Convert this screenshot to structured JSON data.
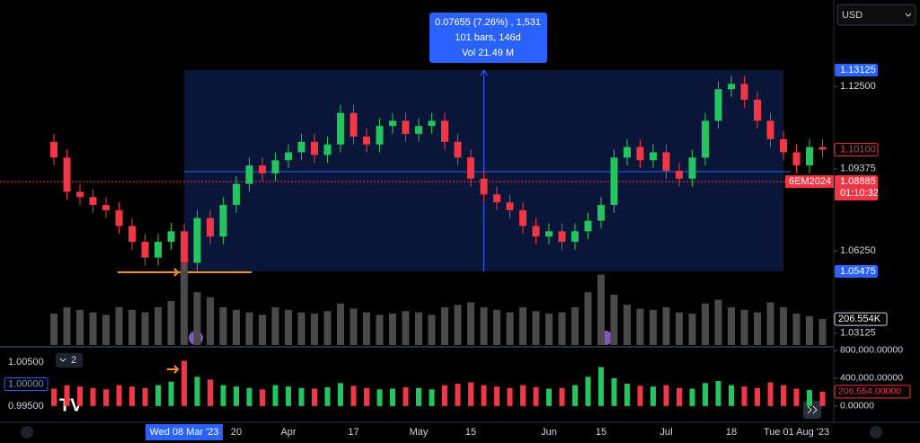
{
  "toolbar": {
    "currency": "USD",
    "indicator_count": "2"
  },
  "chart_data": {
    "type": "candlestick",
    "open": [
      1.104,
      1.098,
      1.085,
      1.083,
      1.08,
      1.078,
      1.072,
      1.066,
      1.06,
      1.066,
      1.07,
      1.058,
      1.075,
      1.068,
      1.08,
      1.088,
      1.095,
      1.092,
      1.097,
      1.1,
      1.104,
      1.099,
      1.103,
      1.115,
      1.106,
      1.103,
      1.11,
      1.112,
      1.107,
      1.11,
      1.112,
      1.104,
      1.098,
      1.09,
      1.084,
      1.081,
      1.078,
      1.072,
      1.068,
      1.07,
      1.066,
      1.07,
      1.074,
      1.08,
      1.098,
      1.102,
      1.097,
      1.1,
      1.093,
      1.09,
      1.098,
      1.112,
      1.124,
      1.126,
      1.12,
      1.112,
      1.105,
      1.1,
      1.095,
      1.102
    ],
    "high": [
      1.107,
      1.101,
      1.088,
      1.086,
      1.083,
      1.081,
      1.075,
      1.069,
      1.069,
      1.073,
      1.073,
      1.078,
      1.078,
      1.083,
      1.091,
      1.098,
      1.098,
      1.1,
      1.103,
      1.107,
      1.107,
      1.106,
      1.118,
      1.118,
      1.109,
      1.113,
      1.115,
      1.115,
      1.113,
      1.115,
      1.115,
      1.107,
      1.101,
      1.093,
      1.087,
      1.084,
      1.081,
      1.075,
      1.073,
      1.073,
      1.073,
      1.077,
      1.083,
      1.101,
      1.105,
      1.105,
      1.103,
      1.103,
      1.096,
      1.101,
      1.115,
      1.127,
      1.129,
      1.129,
      1.123,
      1.115,
      1.108,
      1.103,
      1.105,
      1.105
    ],
    "low": [
      1.095,
      1.082,
      1.08,
      1.077,
      1.075,
      1.069,
      1.063,
      1.057,
      1.057,
      1.063,
      1.055,
      1.055,
      1.065,
      1.065,
      1.077,
      1.085,
      1.089,
      1.089,
      1.094,
      1.097,
      1.096,
      1.096,
      1.1,
      1.103,
      1.1,
      1.1,
      1.107,
      1.104,
      1.104,
      1.107,
      1.101,
      1.095,
      1.087,
      1.081,
      1.078,
      1.075,
      1.069,
      1.065,
      1.065,
      1.063,
      1.063,
      1.067,
      1.071,
      1.077,
      1.095,
      1.094,
      1.094,
      1.09,
      1.087,
      1.087,
      1.095,
      1.109,
      1.121,
      1.117,
      1.109,
      1.102,
      1.097,
      1.092,
      1.092,
      1.098
    ],
    "close": [
      1.098,
      1.085,
      1.083,
      1.08,
      1.078,
      1.072,
      1.066,
      1.06,
      1.066,
      1.07,
      1.058,
      1.075,
      1.068,
      1.08,
      1.088,
      1.095,
      1.092,
      1.097,
      1.1,
      1.104,
      1.099,
      1.103,
      1.115,
      1.106,
      1.103,
      1.11,
      1.112,
      1.107,
      1.11,
      1.112,
      1.104,
      1.098,
      1.09,
      1.084,
      1.081,
      1.078,
      1.072,
      1.068,
      1.07,
      1.066,
      1.07,
      1.074,
      1.08,
      1.098,
      1.102,
      1.097,
      1.1,
      1.093,
      1.09,
      1.098,
      1.112,
      1.124,
      1.126,
      1.12,
      1.112,
      1.105,
      1.1,
      1.095,
      1.102,
      1.101
    ],
    "volume": [
      250000,
      300000,
      280000,
      260000,
      240000,
      300000,
      280000,
      260000,
      300000,
      350000,
      650000,
      420000,
      380000,
      300000,
      280000,
      260000,
      240000,
      300000,
      280000,
      260000,
      250000,
      270000,
      330000,
      290000,
      260000,
      240000,
      250000,
      270000,
      260000,
      240000,
      300000,
      320000,
      340000,
      300000,
      280000,
      260000,
      300000,
      270000,
      250000,
      260000,
      300000,
      420000,
      560000,
      400000,
      320000,
      290000,
      280000,
      300000,
      260000,
      250000,
      330000,
      360000,
      300000,
      280000,
      260000,
      340000,
      300000,
      250000,
      230000,
      206554
    ],
    "categories": [
      null,
      null,
      null,
      null,
      null,
      null,
      null,
      null,
      null,
      null,
      "Wed 08 Mar '23",
      null,
      null,
      null,
      "20",
      null,
      null,
      null,
      "Apr",
      null,
      null,
      null,
      null,
      "17",
      null,
      null,
      null,
      null,
      "May",
      null,
      null,
      null,
      "15",
      null,
      null,
      null,
      null,
      null,
      "Jun",
      null,
      null,
      null,
      "15",
      null,
      null,
      null,
      null,
      "Jul",
      null,
      null,
      null,
      null,
      "18",
      null,
      null,
      null,
      null,
      "Tue 01 Aug '23",
      null,
      null
    ],
    "highlight_categories": [
      10,
      56
    ],
    "ylim": [
      1.0264,
      1.15789
    ],
    "yticks": [
      {
        "value": 1.125,
        "label": "1.12500"
      },
      1.09375,
      {
        "value": 1.0625,
        "label": "1.06250"
      },
      1.03125
    ],
    "highlight_prices": [
      1.13125,
      1.05475
    ],
    "up_color": "#22c55e",
    "down_color": "#f23645",
    "last_price": {
      "value": 1.101,
      "label": "1.10100"
    },
    "symbol": "6EM2024",
    "settle_price": 1.08885,
    "countdown": "01:10:32",
    "volume_label": {
      "value": 206554,
      "label": "206.554K"
    },
    "measure": {
      "lines": [
        "0.07655 (7.26%) , 1,531",
        "101 bars, 146d",
        "Vol 21.49 M"
      ]
    },
    "indicator": {
      "ylim": [
        -170000,
        825000
      ],
      "yticks": [
        {
          "value": 800000,
          "label": "800,000.00000"
        },
        {
          "value": 400000,
          "label": "400,000.00000"
        },
        {
          "value": 0,
          "label": "0.00000"
        }
      ],
      "last": {
        "value": 206554,
        "label": "206,554.00000"
      },
      "left_ylim": [
        0.99235,
        1.00807
      ],
      "left_ticks": [
        {
          "value": 1.005,
          "label": "1.00500"
        },
        {
          "value": 1,
          "label": "1.00000"
        },
        {
          "value": 0.995,
          "label": "0.99500"
        }
      ]
    }
  }
}
